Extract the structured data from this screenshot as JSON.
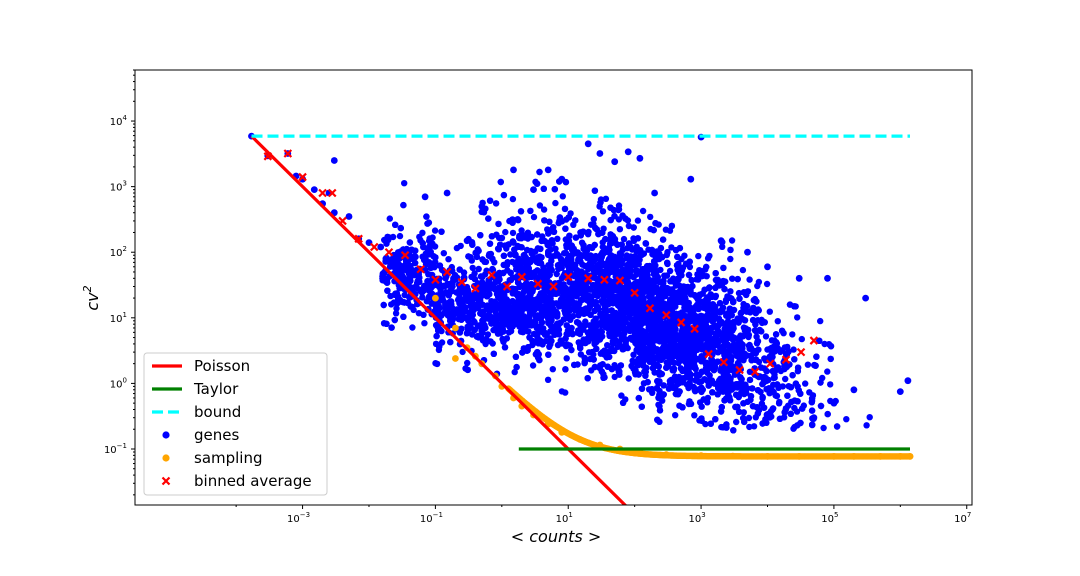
{
  "chart_data": {
    "type": "scatter",
    "title": "",
    "xlabel": "< counts >",
    "ylabel": "cv",
    "ylabel_superscript": "2",
    "x_scale": "log",
    "y_scale": "log",
    "xlim": [
      3e-06,
      12000000
    ],
    "ylim": [
      0.014,
      60000
    ],
    "grid": false,
    "legend_position": "lower-left",
    "x_ticks": [
      {
        "value": 0.001,
        "base": "10",
        "exp": "−3"
      },
      {
        "value": 0.1,
        "base": "10",
        "exp": "−1"
      },
      {
        "value": 10,
        "base": "10",
        "exp": "1"
      },
      {
        "value": 1000,
        "base": "10",
        "exp": "3"
      },
      {
        "value": 100000,
        "base": "10",
        "exp": "5"
      },
      {
        "value": 10000000,
        "base": "10",
        "exp": "7"
      }
    ],
    "y_ticks": [
      {
        "value": 0.1,
        "base": "10",
        "exp": "−1"
      },
      {
        "value": 1,
        "base": "10",
        "exp": "0"
      },
      {
        "value": 10,
        "base": "10",
        "exp": "1"
      },
      {
        "value": 100,
        "base": "10",
        "exp": "2"
      },
      {
        "value": 1000,
        "base": "10",
        "exp": "3"
      },
      {
        "value": 10000,
        "base": "10",
        "exp": "4"
      }
    ],
    "series": [
      {
        "name": "Poisson",
        "kind": "line",
        "color": "#ff0000",
        "style": "solid",
        "points": [
          [
            0.00017,
            5900
          ],
          [
            100,
            0.01
          ]
        ]
      },
      {
        "name": "Taylor",
        "kind": "line",
        "color": "#008000",
        "style": "solid",
        "points": [
          [
            1.8,
            0.1
          ],
          [
            1400000,
            0.1
          ]
        ]
      },
      {
        "name": "bound",
        "kind": "line",
        "color": "#00ffff",
        "style": "dashed",
        "points": [
          [
            0.00017,
            5900
          ],
          [
            1400000,
            5900
          ]
        ]
      },
      {
        "name": "genes",
        "kind": "scatter",
        "color": "#0000ff",
        "marker": "circle",
        "points": [
          [
            0.00017,
            5900
          ],
          [
            0.0003,
            2950
          ],
          [
            0.0006,
            3200
          ],
          [
            0.0008,
            1450
          ],
          [
            0.001,
            1300
          ],
          [
            0.0015,
            900
          ],
          [
            0.002,
            550
          ],
          [
            0.0025,
            800
          ],
          [
            0.003,
            2500
          ],
          [
            0.003,
            400
          ],
          [
            0.005,
            350
          ],
          [
            0.007,
            160
          ],
          [
            0.01,
            140
          ],
          [
            0.015,
            120
          ],
          [
            0.03,
            100
          ],
          [
            0.05,
            85
          ],
          [
            0.08,
            70
          ],
          [
            0.07,
            700
          ],
          [
            0.15,
            800
          ],
          [
            0.3,
            150
          ],
          [
            0.5,
            500
          ],
          [
            1.5,
            1800
          ],
          [
            3,
            900
          ],
          [
            5,
            1800
          ],
          [
            8,
            1300
          ],
          [
            20,
            4500
          ],
          [
            30,
            3200
          ],
          [
            50,
            2400
          ],
          [
            80,
            3400
          ],
          [
            120,
            2700
          ],
          [
            200,
            800
          ],
          [
            700,
            1300
          ],
          [
            1000,
            5700
          ],
          [
            2000,
            150
          ],
          [
            5000,
            100
          ],
          [
            10000,
            60
          ],
          [
            30000,
            40
          ],
          [
            80000,
            40
          ],
          [
            300000,
            20
          ],
          [
            1000000,
            0.75
          ],
          [
            1300000,
            1.1
          ],
          [
            200000,
            0.8
          ],
          [
            100000,
            0.5
          ],
          [
            50000,
            0.3
          ]
        ]
      },
      {
        "name": "sampling",
        "kind": "scatter",
        "color": "#ffa500",
        "marker": "circle",
        "points": [
          [
            0.1,
            20
          ],
          [
            0.2,
            7
          ],
          [
            0.2,
            2.4
          ],
          [
            0.3,
            3.5
          ],
          [
            0.4,
            2.6
          ],
          [
            0.5,
            2
          ],
          [
            0.8,
            1.3
          ],
          [
            1,
            0.9
          ],
          [
            1.5,
            0.6
          ],
          [
            2,
            0.45
          ],
          [
            3,
            0.33
          ],
          [
            5,
            0.24
          ],
          [
            8,
            0.18
          ],
          [
            15,
            0.14
          ],
          [
            30,
            0.115
          ],
          [
            60,
            0.1
          ],
          [
            120,
            0.09
          ],
          [
            300,
            0.082
          ],
          [
            1000,
            0.079
          ],
          [
            3000,
            0.078
          ],
          [
            10000,
            0.077
          ],
          [
            30000,
            0.077
          ],
          [
            100000,
            0.077
          ],
          [
            200000,
            0.077
          ],
          [
            500000,
            0.077
          ],
          [
            1000000,
            0.077
          ],
          [
            1400000,
            0.077
          ]
        ]
      },
      {
        "name": "binned average",
        "kind": "scatter",
        "color": "#ff0000",
        "marker": "x",
        "points": [
          [
            0.0003,
            2900
          ],
          [
            0.0006,
            3200
          ],
          [
            0.001,
            1400
          ],
          [
            0.002,
            800
          ],
          [
            0.0028,
            800
          ],
          [
            0.004,
            300
          ],
          [
            0.007,
            160
          ],
          [
            0.012,
            120
          ],
          [
            0.02,
            100
          ],
          [
            0.035,
            90
          ],
          [
            0.06,
            55
          ],
          [
            0.1,
            38
          ],
          [
            0.15,
            50
          ],
          [
            0.25,
            35
          ],
          [
            0.4,
            28
          ],
          [
            0.7,
            45
          ],
          [
            1.2,
            30
          ],
          [
            2,
            42
          ],
          [
            3.5,
            33
          ],
          [
            6,
            30
          ],
          [
            10,
            42
          ],
          [
            20,
            40
          ],
          [
            35,
            38
          ],
          [
            60,
            37
          ],
          [
            100,
            24
          ],
          [
            170,
            14
          ],
          [
            300,
            11
          ],
          [
            500,
            8.5
          ],
          [
            800,
            6.8
          ],
          [
            1300,
            2.8
          ],
          [
            2200,
            2.1
          ],
          [
            3800,
            1.6
          ],
          [
            6500,
            1.5
          ],
          [
            11000,
            2
          ],
          [
            19000,
            2.3
          ],
          [
            32000,
            3
          ],
          [
            50000,
            4.5
          ]
        ]
      }
    ]
  }
}
